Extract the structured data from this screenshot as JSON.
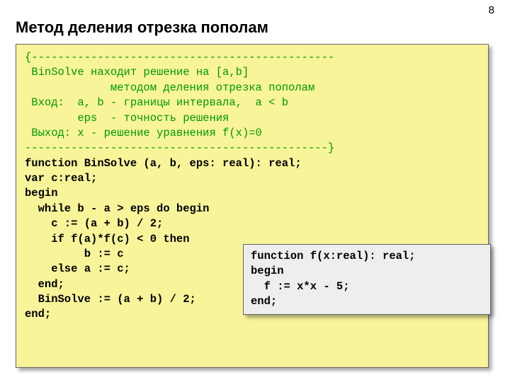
{
  "page_number": "8",
  "title": "Метод деления отрезка пополам",
  "comment": {
    "l1": "{----------------------------------------------",
    "l2": " BinSolve находит решение на [a,b]",
    "l3": "             методом деления отрезка пополам",
    "l4": " Вход:  a, b - границы интервала,  a < b",
    "l5": "        eps  - точность решения",
    "l6": " Выход: x - решение уравнения f(x)=0",
    "l7": "----------------------------------------------}"
  },
  "code": {
    "l1": "function BinSolve (a, b, eps: real): real;",
    "l2": "var c:real;",
    "l3": "begin",
    "l4": "  while b - a > eps do begin",
    "l5": "    c := (a + b) / 2;",
    "l6": "    if f(a)*f(c) < 0 then",
    "l7": "         b := c",
    "l8": "    else a := c;",
    "l9": "  end;",
    "l10": "  BinSolve := (a + b) / 2;",
    "l11": "end;"
  },
  "inset": {
    "l1": "function f(x:real): real;",
    "l2": "begin",
    "l3": "  f := x*x - 5;",
    "l4": "end;"
  },
  "colors": {
    "code_bg": "#f8f49a",
    "inset_bg": "#eeeeee",
    "comment_color": "#009a00",
    "text_color": "#000000",
    "page_bg": "#ffffff"
  },
  "fonts": {
    "title_size_pt": 22,
    "code_size_pt": 15.5,
    "code_family": "Courier New"
  }
}
